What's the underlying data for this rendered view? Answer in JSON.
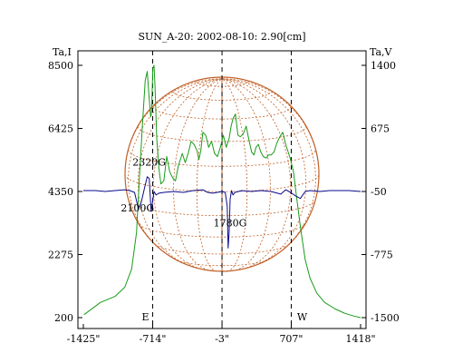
{
  "chart_data": {
    "type": "line",
    "title": "SUN_A-20: 2002-08-10: 2.90[cm]",
    "left_axis_label": "Ta,I",
    "right_axis_label": "Ta,V",
    "x_tick_labels": [
      "-1425\"",
      "-714\"",
      "-3\"",
      "707\"",
      "1418\""
    ],
    "x_ticks": [
      -1425,
      -714,
      -3,
      707,
      1418
    ],
    "xlim": [
      -1425,
      1418
    ],
    "left_ylim": [
      200,
      8500
    ],
    "left_ticks": [
      200,
      2275,
      4350,
      6425,
      8500
    ],
    "right_ylim": [
      -1500,
      1400
    ],
    "right_ticks": [
      -1500,
      -775,
      -50,
      675,
      1400
    ],
    "grid": false,
    "limb_markers": [
      {
        "x": -714,
        "label": "E"
      },
      {
        "x": -3,
        "label": ""
      },
      {
        "x": 707,
        "label": "W"
      }
    ],
    "annotations": [
      {
        "text": "2320G",
        "x": -750,
        "y": 5200
      },
      {
        "text": "2100G",
        "x": -870,
        "y": 3700
      },
      {
        "text": "1780G",
        "x": 80,
        "y": 3200
      }
    ],
    "colors": {
      "intensity": "#1a9b1a",
      "polarization": "#0a0a8c",
      "solar_grid": "#c0622a",
      "markers": "#000000"
    },
    "series": [
      {
        "name": "",
        "axis": "left",
        "color": "#1a9b1a",
        "x": [
          -1418,
          -1250,
          -1100,
          -1000,
          -930,
          -880,
          -850,
          -820,
          -790,
          -770,
          -750,
          -735,
          -725,
          -712,
          -700,
          -690,
          -672,
          -650,
          -630,
          -600,
          -570,
          -540,
          -510,
          -480,
          -450,
          -410,
          -380,
          -350,
          -320,
          -290,
          -260,
          -240,
          -220,
          -200,
          -170,
          -140,
          -110,
          -80,
          -50,
          -20,
          10,
          40,
          70,
          90,
          110,
          135,
          160,
          185,
          215,
          245,
          270,
          300,
          325,
          345,
          370,
          395,
          420,
          450,
          475,
          500,
          530,
          560,
          590,
          620,
          650,
          680,
          700,
          730,
          760,
          800,
          850,
          900,
          970,
          1050,
          1150,
          1250,
          1350,
          1418
        ],
        "y": [
          300,
          700,
          900,
          1200,
          1800,
          3000,
          4800,
          6500,
          8000,
          8300,
          7400,
          6800,
          7000,
          8400,
          8500,
          7800,
          6100,
          5100,
          4600,
          4700,
          5500,
          5000,
          4800,
          4700,
          5200,
          5600,
          5300,
          5600,
          6000,
          5900,
          5700,
          5400,
          5700,
          6300,
          6200,
          5800,
          6000,
          5600,
          5500,
          5800,
          6200,
          5800,
          6100,
          6500,
          6750,
          6900,
          6200,
          6150,
          6250,
          6500,
          6100,
          5650,
          5550,
          5800,
          5900,
          5650,
          5500,
          5450,
          5550,
          5550,
          5650,
          5950,
          6150,
          6300,
          5900,
          5600,
          5400,
          5000,
          4200,
          3200,
          2100,
          1500,
          1000,
          700,
          500,
          350,
          250,
          200
        ]
      },
      {
        "name": "",
        "axis": "right",
        "color": "#0a0a8c",
        "x": [
          -1425,
          -1300,
          -1200,
          -1100,
          -1000,
          -950,
          -900,
          -860,
          -830,
          -800,
          -770,
          -750,
          -730,
          -700,
          -680,
          -650,
          -600,
          -500,
          -400,
          -300,
          -200,
          -150,
          -100,
          -50,
          -3,
          30,
          50,
          60,
          70,
          80,
          95,
          110,
          130,
          200,
          300,
          400,
          500,
          600,
          650,
          700,
          750,
          800,
          850,
          900,
          1000,
          1100,
          1200,
          1300,
          1418
        ],
        "y": [
          -40,
          -40,
          -50,
          -40,
          -30,
          -40,
          -60,
          -250,
          -170,
          -20,
          120,
          100,
          -280,
          -50,
          -90,
          -70,
          -60,
          -50,
          -60,
          -40,
          -30,
          -60,
          -70,
          -60,
          -50,
          -60,
          -220,
          -700,
          -520,
          -140,
          -40,
          -90,
          -60,
          -40,
          -50,
          -40,
          -50,
          -80,
          -30,
          -60,
          -100,
          -130,
          -50,
          -40,
          -50,
          -40,
          -40,
          -40,
          -50
        ]
      }
    ]
  }
}
